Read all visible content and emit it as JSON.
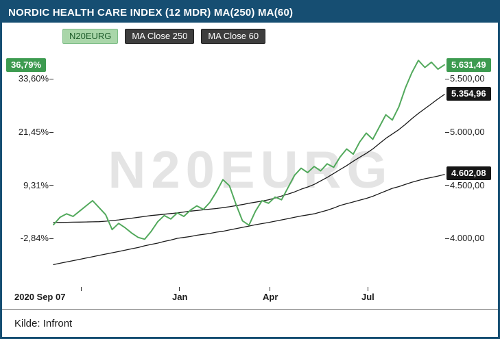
{
  "title": "NORDIC HEALTH CARE INDEX (12 MDR) MA(250) MA(60)",
  "watermark": "N20EURG",
  "footer": {
    "source": "Kilde: Infront"
  },
  "legend": {
    "items": [
      {
        "label": "N20EURG",
        "style": "green"
      },
      {
        "label": "MA Close 250",
        "style": "dark"
      },
      {
        "label": "MA Close 60",
        "style": "dark"
      }
    ]
  },
  "left_axis": {
    "badge_pct": "36,79%",
    "ticks": [
      "33,60%",
      "21,45%",
      "9,31%",
      "-2,84%"
    ]
  },
  "right_axis": {
    "badge_last_price": "5.631,49",
    "badge_ma60": "5.354,96",
    "badge_ma250": "4.602,08",
    "ticks": [
      "5.500,00",
      "5.000,00",
      "4.500,00",
      "4.000,00"
    ]
  },
  "x_axis": {
    "ticks": [
      "2020 Sep 07",
      "Jan",
      "Apr",
      "Jul"
    ]
  },
  "colors": {
    "header_bg": "#164e72",
    "frame_border": "#164e72",
    "line_green": "#52a95c",
    "line_black": "#1a1a1a",
    "badge_green_bg": "#3d9b50",
    "badge_black_bg": "#161616",
    "legend_green_bg": "#a9d6a9",
    "legend_green_text": "#1d5c2a",
    "legend_dark_bg": "#3d3d3d",
    "watermark": "#e4e4e4"
  },
  "chart_data": {
    "type": "line",
    "title": "NORDIC HEALTH CARE INDEX (12 MDR) MA(250) MA(60)",
    "x_ticklabels": [
      "2020 Sep 07",
      "Jan",
      "Apr",
      "Jul"
    ],
    "x_range_note": "weekly-ish samples from 2020-09-07 to late Aug 2021",
    "y_left_ticks_pct": [
      33.6,
      21.45,
      9.31,
      -2.84
    ],
    "y_right_ticks_price": [
      5500.0,
      5000.0,
      4500.0,
      4000.0
    ],
    "y_pct_range": [
      -11.4,
      39.4
    ],
    "grid": false,
    "legend_position": "top-left",
    "source": "Kilde: Infront",
    "series": [
      {
        "name": "N20EURG",
        "stroke": "#52a95c",
        "stroke_width": 2,
        "last_price": 5631.49,
        "last_pct": 36.79,
        "values_pct": [
          0.3,
          2.0,
          2.8,
          2.2,
          3.4,
          4.6,
          5.8,
          4.2,
          2.6,
          -0.8,
          0.6,
          -0.4,
          -1.6,
          -2.6,
          -3.0,
          -1.2,
          1.0,
          2.4,
          1.6,
          3.0,
          2.2,
          3.6,
          4.6,
          3.8,
          5.4,
          7.8,
          10.6,
          9.2,
          5.0,
          1.2,
          0.2,
          3.4,
          5.8,
          5.2,
          6.6,
          6.0,
          8.8,
          11.6,
          13.2,
          12.2,
          13.6,
          12.6,
          14.2,
          13.4,
          15.8,
          17.6,
          16.4,
          19.2,
          21.2,
          19.8,
          22.6,
          25.4,
          24.2,
          27.2,
          31.5,
          35.0,
          37.8,
          36.2,
          37.4,
          35.8,
          36.79
        ]
      },
      {
        "name": "MA Close 250",
        "stroke": "#1a1a1a",
        "stroke_width": 1.3,
        "last_price": 4602.08,
        "values_pct": [
          -8.8,
          -8.5,
          -8.2,
          -7.9,
          -7.6,
          -7.3,
          -7.0,
          -6.7,
          -6.4,
          -6.1,
          -5.8,
          -5.5,
          -5.2,
          -4.9,
          -4.5,
          -4.2,
          -3.9,
          -3.5,
          -3.2,
          -2.8,
          -2.6,
          -2.4,
          -2.1,
          -1.9,
          -1.7,
          -1.4,
          -1.2,
          -0.9,
          -0.6,
          -0.3,
          0.0,
          0.3,
          0.55,
          0.8,
          1.1,
          1.4,
          1.7,
          2.0,
          2.3,
          2.55,
          2.8,
          3.2,
          3.6,
          4.1,
          4.7,
          5.1,
          5.5,
          5.9,
          6.3,
          6.8,
          7.4,
          8.0,
          8.6,
          9.0,
          9.5,
          10.0,
          10.4,
          10.8,
          11.1,
          11.4,
          11.77
        ]
      },
      {
        "name": "MA Close 60",
        "stroke": "#1a1a1a",
        "stroke_width": 1.3,
        "last_price": 5354.96,
        "values_pct": [
          0.8,
          0.82,
          0.85,
          0.88,
          0.9,
          0.93,
          0.96,
          1.0,
          1.1,
          1.25,
          1.4,
          1.6,
          1.8,
          2.0,
          2.2,
          2.4,
          2.55,
          2.7,
          2.85,
          3.0,
          3.2,
          3.4,
          3.55,
          3.7,
          3.85,
          4.0,
          4.2,
          4.4,
          4.65,
          4.9,
          5.2,
          5.45,
          5.7,
          6.0,
          6.4,
          6.85,
          7.3,
          7.8,
          8.4,
          8.9,
          9.5,
          10.3,
          11.1,
          12.0,
          12.9,
          13.8,
          14.8,
          15.7,
          16.6,
          17.6,
          18.8,
          20.0,
          21.0,
          22.0,
          23.2,
          24.5,
          25.7,
          26.8,
          27.9,
          29.0,
          30.06
        ]
      }
    ]
  }
}
